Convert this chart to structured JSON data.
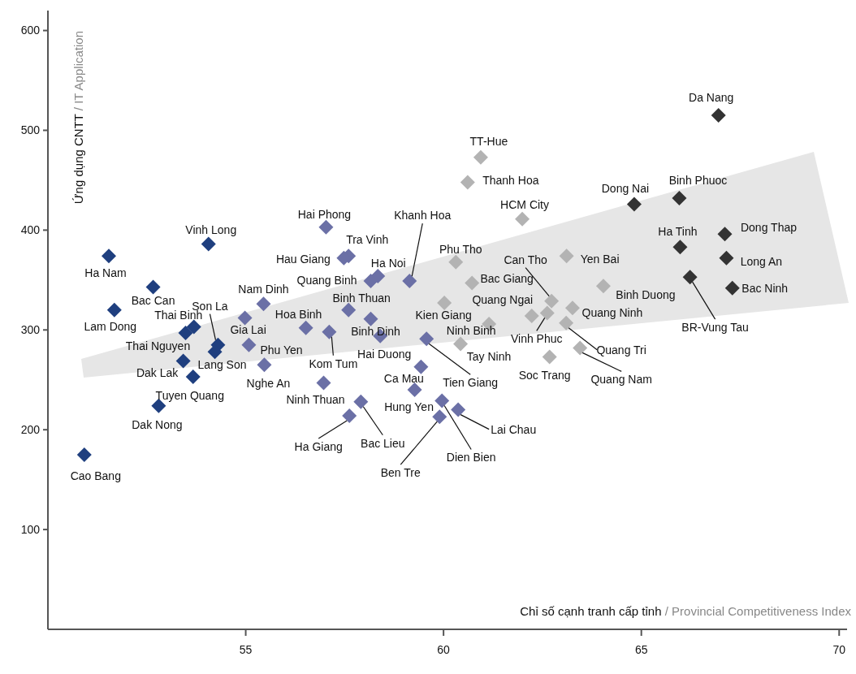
{
  "chart_data": {
    "type": "scatter",
    "xlabel": "Chỉ số cạnh tranh cấp tỉnh / Provincial Competitiveness Index",
    "ylabel": "Ứng dụng CNTT / IT Application",
    "xlim": [
      50,
      70.2
    ],
    "ylim": [
      0,
      620
    ],
    "xticks": [
      55,
      60,
      65,
      70
    ],
    "yticks": [
      100,
      200,
      300,
      400,
      500,
      600
    ],
    "grid": false,
    "marker": "diamond",
    "series": [
      {
        "color": "#1f3f7f",
        "x": [
          50.92,
          51.54,
          52.66,
          51.68,
          54.06,
          53.69,
          53.48,
          54.3,
          54.22,
          53.42,
          53.67,
          52.8
        ],
        "values": [
          175,
          374,
          343,
          320,
          386,
          303,
          297,
          285,
          278,
          269,
          253,
          224
        ]
      },
      {
        "color": "#6b70a6",
        "x": [
          57.03,
          57.6,
          57.48,
          58.34,
          58.16,
          59.14,
          55.45,
          57.6,
          56.52,
          54.98,
          58.16,
          57.11,
          55.08,
          55.47,
          58.4,
          56.97,
          59.43,
          59.57,
          59.27,
          57.91,
          57.62,
          59.9,
          59.96,
          60.37
        ],
        "values": [
          403,
          374,
          372,
          354,
          349,
          349,
          326,
          320,
          302,
          312,
          311,
          298,
          285,
          265,
          294,
          247,
          263,
          291,
          240,
          228,
          214,
          213,
          229,
          220
        ]
      },
      {
        "color": "#b3b3b3",
        "x": [
          60.94,
          60.61,
          61.99,
          60.31,
          60.72,
          60.02,
          62.23,
          61.15,
          60.43,
          62.73,
          63.11,
          64.04,
          63.26,
          62.62,
          63.1,
          62.68,
          63.45
        ],
        "values": [
          473,
          448,
          411,
          368,
          347,
          327,
          314,
          306,
          286,
          329,
          374,
          344,
          322,
          317,
          307,
          273,
          282
        ]
      },
      {
        "color": "#333333",
        "x": [
          66.95,
          64.82,
          65.96,
          65.98,
          67.11,
          67.15,
          67.3,
          66.23
        ],
        "values": [
          515,
          426,
          432,
          383,
          396,
          372,
          342,
          353
        ]
      }
    ],
    "annotations": [
      {
        "text": "Cao Bang",
        "x": 50.92,
        "y": 175
      },
      {
        "text": "Ha Nam",
        "x": 51.54,
        "y": 374
      },
      {
        "text": "Bac Can",
        "x": 52.66,
        "y": 343
      },
      {
        "text": "Lam Dong",
        "x": 51.68,
        "y": 320
      },
      {
        "text": "Vinh Long",
        "x": 54.06,
        "y": 386
      },
      {
        "text": "Thai Binh",
        "x": 53.69,
        "y": 303
      },
      {
        "text": "Thai Nguyen",
        "x": 53.48,
        "y": 297
      },
      {
        "text": "Son La",
        "x": 54.3,
        "y": 285
      },
      {
        "text": "Lang Son",
        "x": 54.22,
        "y": 278
      },
      {
        "text": "Dak Lak",
        "x": 53.42,
        "y": 269
      },
      {
        "text": "Tuyen Quang",
        "x": 53.67,
        "y": 253
      },
      {
        "text": "Dak Nong",
        "x": 52.8,
        "y": 224
      },
      {
        "text": "Hai Phong",
        "x": 57.03,
        "y": 403
      },
      {
        "text": "Tra Vinh",
        "x": 57.6,
        "y": 374
      },
      {
        "text": "Hau Giang",
        "x": 57.48,
        "y": 372
      },
      {
        "text": "Ha Noi",
        "x": 58.34,
        "y": 354
      },
      {
        "text": "Quang Binh",
        "x": 58.16,
        "y": 349
      },
      {
        "text": "Khanh Hoa",
        "x": 59.14,
        "y": 349
      },
      {
        "text": "Nam Dinh",
        "x": 55.45,
        "y": 326
      },
      {
        "text": "Binh Thuan",
        "x": 57.6,
        "y": 320
      },
      {
        "text": "Hoa Binh",
        "x": 56.52,
        "y": 302
      },
      {
        "text": "Gia Lai",
        "x": 54.98,
        "y": 312
      },
      {
        "text": "Binh Dinh",
        "x": 58.16,
        "y": 311
      },
      {
        "text": "Kom Tum",
        "x": 57.11,
        "y": 298
      },
      {
        "text": "Phu Yen",
        "x": 55.08,
        "y": 285
      },
      {
        "text": "Nghe An",
        "x": 55.47,
        "y": 265
      },
      {
        "text": "Hai Duong",
        "x": 58.4,
        "y": 294
      },
      {
        "text": "Ninh Thuan",
        "x": 56.97,
        "y": 247
      },
      {
        "text": "Ca Mau",
        "x": 59.43,
        "y": 263
      },
      {
        "text": "Tien Giang",
        "x": 59.57,
        "y": 291
      },
      {
        "text": "Hung Yen",
        "x": 59.27,
        "y": 240
      },
      {
        "text": "Bac Lieu",
        "x": 57.91,
        "y": 228
      },
      {
        "text": "Ha Giang",
        "x": 57.62,
        "y": 214
      },
      {
        "text": "Ben Tre",
        "x": 59.9,
        "y": 213
      },
      {
        "text": "Dien Bien",
        "x": 59.96,
        "y": 229
      },
      {
        "text": "Lai Chau",
        "x": 60.37,
        "y": 220
      },
      {
        "text": "TT-Hue",
        "x": 60.94,
        "y": 473
      },
      {
        "text": "Thanh Hoa",
        "x": 60.61,
        "y": 448
      },
      {
        "text": "HCM City",
        "x": 61.99,
        "y": 411
      },
      {
        "text": "Phu Tho",
        "x": 60.31,
        "y": 368
      },
      {
        "text": "Bac Giang",
        "x": 60.72,
        "y": 347
      },
      {
        "text": "Kien Giang",
        "x": 60.02,
        "y": 327
      },
      {
        "text": "Quang Ngai",
        "x": 62.23,
        "y": 314
      },
      {
        "text": "Ninh Binh",
        "x": 61.15,
        "y": 306
      },
      {
        "text": "Tay Ninh",
        "x": 60.43,
        "y": 286
      },
      {
        "text": "Can Tho",
        "x": 62.73,
        "y": 329
      },
      {
        "text": "Yen Bai",
        "x": 63.11,
        "y": 374
      },
      {
        "text": "Binh Duong",
        "x": 64.04,
        "y": 344
      },
      {
        "text": "Quang Ninh",
        "x": 63.26,
        "y": 322
      },
      {
        "text": "Vinh Phuc",
        "x": 62.62,
        "y": 317
      },
      {
        "text": "Quang Tri",
        "x": 63.1,
        "y": 307
      },
      {
        "text": "Soc Trang",
        "x": 62.68,
        "y": 273
      },
      {
        "text": "Quang Nam",
        "x": 63.45,
        "y": 282
      },
      {
        "text": "Da Nang",
        "x": 66.95,
        "y": 515
      },
      {
        "text": "Dong Nai",
        "x": 64.82,
        "y": 426
      },
      {
        "text": "Binh Phuoc",
        "x": 65.96,
        "y": 432
      },
      {
        "text": "Ha Tinh",
        "x": 65.98,
        "y": 383
      },
      {
        "text": "Dong Thap",
        "x": 67.11,
        "y": 396
      },
      {
        "text": "Long An",
        "x": 67.15,
        "y": 372
      },
      {
        "text": "Bac Ninh",
        "x": 67.3,
        "y": 342
      },
      {
        "text": "BR-Vung Tau",
        "x": 66.23,
        "y": 353
      }
    ]
  }
}
